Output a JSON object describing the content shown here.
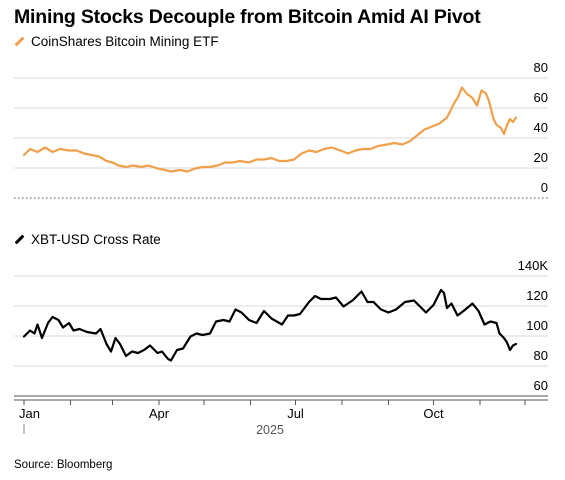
{
  "title": "Mining Stocks Decouple from Bitcoin Amid AI Pivot",
  "source": "Source: Bloomberg",
  "colors": {
    "etf": "#f0a04b",
    "btc": "#000000",
    "grid": "#d9d9d9",
    "dotted": "#b0b0b0"
  },
  "chart_data": [
    {
      "type": "line",
      "title": "",
      "series": [
        {
          "name": "CoinShares Bitcoin Mining ETF",
          "color": "#f0a04b"
        }
      ],
      "x_range": [
        "2025-01-01",
        "2025-11-25"
      ],
      "ylim": [
        0,
        80
      ],
      "yticks": [
        "80",
        "60",
        "40",
        "20",
        "0"
      ],
      "points": [
        [
          "2025-01-01",
          22
        ],
        [
          "2025-01-05",
          26
        ],
        [
          "2025-01-10",
          24
        ],
        [
          "2025-01-15",
          27
        ],
        [
          "2025-01-20",
          24
        ],
        [
          "2025-01-25",
          26
        ],
        [
          "2025-01-31",
          25
        ],
        [
          "2025-02-05",
          25
        ],
        [
          "2025-02-10",
          23
        ],
        [
          "2025-02-15",
          22
        ],
        [
          "2025-02-20",
          21
        ],
        [
          "2025-02-25",
          18
        ],
        [
          "2025-03-01",
          17
        ],
        [
          "2025-03-05",
          15
        ],
        [
          "2025-03-10",
          14
        ],
        [
          "2025-03-15",
          15
        ],
        [
          "2025-03-20",
          14
        ],
        [
          "2025-03-25",
          15
        ],
        [
          "2025-03-31",
          13
        ],
        [
          "2025-04-05",
          12
        ],
        [
          "2025-04-09",
          11
        ],
        [
          "2025-04-15",
          12
        ],
        [
          "2025-04-20",
          11
        ],
        [
          "2025-04-25",
          13
        ],
        [
          "2025-04-30",
          14
        ],
        [
          "2025-05-05",
          14
        ],
        [
          "2025-05-10",
          15
        ],
        [
          "2025-05-15",
          17
        ],
        [
          "2025-05-20",
          17
        ],
        [
          "2025-05-25",
          18
        ],
        [
          "2025-05-31",
          17
        ],
        [
          "2025-06-05",
          19
        ],
        [
          "2025-06-10",
          19
        ],
        [
          "2025-06-15",
          20
        ],
        [
          "2025-06-20",
          18
        ],
        [
          "2025-06-25",
          18
        ],
        [
          "2025-06-30",
          19
        ],
        [
          "2025-07-05",
          23
        ],
        [
          "2025-07-10",
          25
        ],
        [
          "2025-07-15",
          24
        ],
        [
          "2025-07-20",
          26
        ],
        [
          "2025-07-25",
          27
        ],
        [
          "2025-07-31",
          25
        ],
        [
          "2025-08-05",
          23
        ],
        [
          "2025-08-10",
          25
        ],
        [
          "2025-08-15",
          26
        ],
        [
          "2025-08-20",
          26
        ],
        [
          "2025-08-25",
          28
        ],
        [
          "2025-08-31",
          29
        ],
        [
          "2025-09-05",
          30
        ],
        [
          "2025-09-10",
          29
        ],
        [
          "2025-09-15",
          31
        ],
        [
          "2025-09-20",
          35
        ],
        [
          "2025-09-25",
          39
        ],
        [
          "2025-09-30",
          41
        ],
        [
          "2025-10-05",
          43
        ],
        [
          "2025-10-10",
          47
        ],
        [
          "2025-10-15",
          57
        ],
        [
          "2025-10-17",
          60
        ],
        [
          "2025-10-20",
          67
        ],
        [
          "2025-10-23",
          63
        ],
        [
          "2025-10-27",
          60
        ],
        [
          "2025-10-30",
          55
        ],
        [
          "2025-11-02",
          65
        ],
        [
          "2025-11-05",
          63
        ],
        [
          "2025-11-07",
          58
        ],
        [
          "2025-11-10",
          46
        ],
        [
          "2025-11-12",
          42
        ],
        [
          "2025-11-15",
          40
        ],
        [
          "2025-11-17",
          36
        ],
        [
          "2025-11-19",
          42
        ],
        [
          "2025-11-21",
          46
        ],
        [
          "2025-11-23",
          44
        ],
        [
          "2025-11-25",
          47
        ]
      ]
    },
    {
      "type": "line",
      "title": "",
      "series": [
        {
          "name": "XBT-USD Cross Rate",
          "color": "#000000"
        }
      ],
      "x_range": [
        "2025-01-01",
        "2025-11-25"
      ],
      "ylim": [
        60000,
        140000
      ],
      "yticks": [
        "140K",
        "120",
        "100",
        "80",
        "60"
      ],
      "xticks": [
        {
          "date": "2025-01-01",
          "label": "Jan"
        },
        {
          "date": "2025-04-01",
          "label": "Apr"
        },
        {
          "date": "2025-07-01",
          "label": "Jul"
        },
        {
          "date": "2025-10-01",
          "label": "Oct"
        }
      ],
      "year_label": "2025",
      "points": [
        [
          "2025-01-01",
          93000
        ],
        [
          "2025-01-05",
          97000
        ],
        [
          "2025-01-08",
          95000
        ],
        [
          "2025-01-10",
          101000
        ],
        [
          "2025-01-13",
          92000
        ],
        [
          "2025-01-17",
          102000
        ],
        [
          "2025-01-20",
          106000
        ],
        [
          "2025-01-24",
          104000
        ],
        [
          "2025-01-27",
          99000
        ],
        [
          "2025-01-31",
          102000
        ],
        [
          "2025-02-03",
          97000
        ],
        [
          "2025-02-07",
          98000
        ],
        [
          "2025-02-12",
          96000
        ],
        [
          "2025-02-18",
          95000
        ],
        [
          "2025-02-21",
          98000
        ],
        [
          "2025-02-25",
          88000
        ],
        [
          "2025-02-28",
          83000
        ],
        [
          "2025-03-03",
          92000
        ],
        [
          "2025-03-06",
          88000
        ],
        [
          "2025-03-10",
          80000
        ],
        [
          "2025-03-14",
          83000
        ],
        [
          "2025-03-18",
          82000
        ],
        [
          "2025-03-22",
          84000
        ],
        [
          "2025-03-26",
          87000
        ],
        [
          "2025-03-31",
          82000
        ],
        [
          "2025-04-03",
          83000
        ],
        [
          "2025-04-07",
          78000
        ],
        [
          "2025-04-09",
          77000
        ],
        [
          "2025-04-13",
          84000
        ],
        [
          "2025-04-17",
          85000
        ],
        [
          "2025-04-22",
          93000
        ],
        [
          "2025-04-26",
          95000
        ],
        [
          "2025-04-30",
          94000
        ],
        [
          "2025-05-05",
          95000
        ],
        [
          "2025-05-09",
          103000
        ],
        [
          "2025-05-14",
          104000
        ],
        [
          "2025-05-18",
          103000
        ],
        [
          "2025-05-22",
          111000
        ],
        [
          "2025-05-26",
          109000
        ],
        [
          "2025-05-31",
          104000
        ],
        [
          "2025-06-05",
          102000
        ],
        [
          "2025-06-10",
          110000
        ],
        [
          "2025-06-15",
          105000
        ],
        [
          "2025-06-22",
          101000
        ],
        [
          "2025-06-26",
          107000
        ],
        [
          "2025-06-30",
          107000
        ],
        [
          "2025-07-04",
          108000
        ],
        [
          "2025-07-10",
          116000
        ],
        [
          "2025-07-14",
          120000
        ],
        [
          "2025-07-18",
          118000
        ],
        [
          "2025-07-24",
          118000
        ],
        [
          "2025-07-28",
          119000
        ],
        [
          "2025-08-02",
          113000
        ],
        [
          "2025-08-08",
          117000
        ],
        [
          "2025-08-14",
          123000
        ],
        [
          "2025-08-18",
          116000
        ],
        [
          "2025-08-22",
          116000
        ],
        [
          "2025-08-27",
          111000
        ],
        [
          "2025-09-01",
          109000
        ],
        [
          "2025-09-06",
          111000
        ],
        [
          "2025-09-12",
          116000
        ],
        [
          "2025-09-18",
          117000
        ],
        [
          "2025-09-22",
          113000
        ],
        [
          "2025-09-26",
          109000
        ],
        [
          "2025-10-01",
          114000
        ],
        [
          "2025-10-06",
          124000
        ],
        [
          "2025-10-08",
          122000
        ],
        [
          "2025-10-10",
          112000
        ],
        [
          "2025-10-13",
          115000
        ],
        [
          "2025-10-17",
          107000
        ],
        [
          "2025-10-21",
          110000
        ],
        [
          "2025-10-27",
          115000
        ],
        [
          "2025-10-31",
          110000
        ],
        [
          "2025-11-04",
          101000
        ],
        [
          "2025-11-08",
          103000
        ],
        [
          "2025-11-12",
          102000
        ],
        [
          "2025-11-14",
          95000
        ],
        [
          "2025-11-17",
          92000
        ],
        [
          "2025-11-19",
          89000
        ],
        [
          "2025-11-21",
          84000
        ],
        [
          "2025-11-23",
          87000
        ],
        [
          "2025-11-25",
          88000
        ]
      ]
    }
  ]
}
